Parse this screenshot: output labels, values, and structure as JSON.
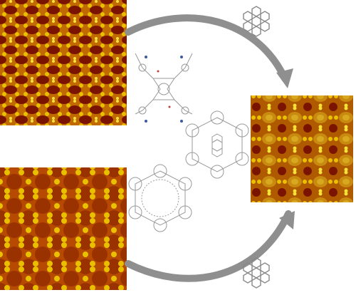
{
  "panels": [
    {
      "id": "stm-top-left",
      "texture": "tetragonal-lattice"
    },
    {
      "id": "stm-bottom-left",
      "texture": "hexagonal-porous-lattice"
    },
    {
      "id": "stm-right",
      "texture": "coronene-loaded-lattice"
    }
  ],
  "arrows": [
    {
      "from": "stm-top-left",
      "to": "stm-right"
    },
    {
      "from": "stm-bottom-left",
      "to": "stm-right"
    }
  ],
  "molecule": "coronene",
  "colors": {
    "stm_dark": "#7a1400",
    "stm_mid": "#b54a00",
    "stm_bright": "#e8c000",
    "stm_highlight": "#f5e13a",
    "arrow": "#8f8f8f",
    "molecule_line": "#9a9a9a"
  }
}
